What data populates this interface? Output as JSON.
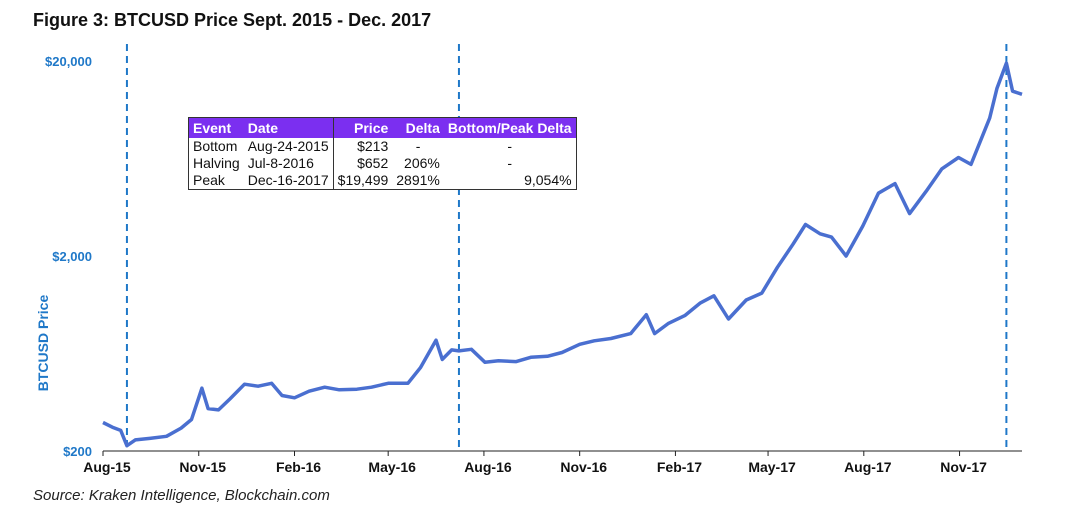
{
  "title": "Figure 3: BTCUSD Price Sept. 2015 - Dec. 2017",
  "source": "Source: Kraken Intelligence, Blockchain.com",
  "colors": {
    "line": "#4a6fd0",
    "accent": "#1f78c8",
    "table_header": "#7b2ff0"
  },
  "table": {
    "headers": [
      "Event",
      "Date",
      "Price",
      "Delta",
      "Bottom/Peak Delta"
    ],
    "rows": [
      [
        "Bottom",
        "Aug-24-2015",
        "$213",
        "-",
        "-"
      ],
      [
        "Halving",
        "Jul-8-2016",
        "$652",
        "206%",
        "-"
      ],
      [
        "Peak",
        "Dec-16-2017",
        "$19,499",
        "2891%",
        "9,054%"
      ]
    ]
  },
  "chart_data": {
    "type": "line",
    "title": "Figure 3: BTCUSD Price Sept. 2015 - Dec. 2017",
    "ylabel": "BTCUSD Price",
    "xlabel": "",
    "y_scale": "log",
    "ylim": [
      200,
      20000
    ],
    "y_ticks": [
      "$200",
      "$2,000",
      "$20,000"
    ],
    "y_tick_values": [
      200,
      2000,
      20000
    ],
    "x_ticks": [
      "Aug-15",
      "Nov-15",
      "Feb-16",
      "May-16",
      "Aug-16",
      "Nov-16",
      "Feb-17",
      "May-17",
      "Aug-17",
      "Nov-17"
    ],
    "xlim": [
      "2015-08-01",
      "2017-12-31"
    ],
    "event_lines": [
      "2015-08-24",
      "2016-07-08",
      "2017-12-16"
    ],
    "series": [
      {
        "values": [
          [
            "2015-08-01",
            280
          ],
          [
            "2015-08-10",
            265
          ],
          [
            "2015-08-18",
            255
          ],
          [
            "2015-08-24",
            213
          ],
          [
            "2015-09-01",
            228
          ],
          [
            "2015-09-15",
            232
          ],
          [
            "2015-10-01",
            238
          ],
          [
            "2015-10-15",
            262
          ],
          [
            "2015-10-25",
            290
          ],
          [
            "2015-11-04",
            420
          ],
          [
            "2015-11-10",
            330
          ],
          [
            "2015-11-20",
            325
          ],
          [
            "2015-12-01",
            370
          ],
          [
            "2015-12-15",
            440
          ],
          [
            "2015-12-28",
            430
          ],
          [
            "2016-01-10",
            445
          ],
          [
            "2016-01-20",
            385
          ],
          [
            "2016-02-01",
            375
          ],
          [
            "2016-02-15",
            405
          ],
          [
            "2016-03-01",
            425
          ],
          [
            "2016-03-15",
            412
          ],
          [
            "2016-04-01",
            415
          ],
          [
            "2016-04-15",
            425
          ],
          [
            "2016-05-01",
            445
          ],
          [
            "2016-05-20",
            445
          ],
          [
            "2016-06-01",
            535
          ],
          [
            "2016-06-16",
            740
          ],
          [
            "2016-06-22",
            590
          ],
          [
            "2016-07-01",
            660
          ],
          [
            "2016-07-08",
            652
          ],
          [
            "2016-07-20",
            665
          ],
          [
            "2016-08-02",
            570
          ],
          [
            "2016-08-15",
            580
          ],
          [
            "2016-09-01",
            575
          ],
          [
            "2016-09-15",
            605
          ],
          [
            "2016-10-01",
            612
          ],
          [
            "2016-10-15",
            640
          ],
          [
            "2016-11-01",
            705
          ],
          [
            "2016-11-15",
            735
          ],
          [
            "2016-12-01",
            755
          ],
          [
            "2016-12-20",
            800
          ],
          [
            "2017-01-04",
            1000
          ],
          [
            "2017-01-12",
            800
          ],
          [
            "2017-01-25",
            900
          ],
          [
            "2017-02-10",
            990
          ],
          [
            "2017-02-25",
            1150
          ],
          [
            "2017-03-10",
            1250
          ],
          [
            "2017-03-24",
            950
          ],
          [
            "2017-04-10",
            1190
          ],
          [
            "2017-04-25",
            1290
          ],
          [
            "2017-05-10",
            1750
          ],
          [
            "2017-05-25",
            2300
          ],
          [
            "2017-06-06",
            2900
          ],
          [
            "2017-06-20",
            2600
          ],
          [
            "2017-07-01",
            2500
          ],
          [
            "2017-07-15",
            2000
          ],
          [
            "2017-07-31",
            2850
          ],
          [
            "2017-08-15",
            4200
          ],
          [
            "2017-08-31",
            4700
          ],
          [
            "2017-09-14",
            3300
          ],
          [
            "2017-09-30",
            4300
          ],
          [
            "2017-10-15",
            5600
          ],
          [
            "2017-10-31",
            6400
          ],
          [
            "2017-11-12",
            5900
          ],
          [
            "2017-11-30",
            10200
          ],
          [
            "2017-12-07",
            14500
          ],
          [
            "2017-12-16",
            19499
          ],
          [
            "2017-12-22",
            14000
          ],
          [
            "2017-12-31",
            13500
          ]
        ]
      }
    ]
  }
}
